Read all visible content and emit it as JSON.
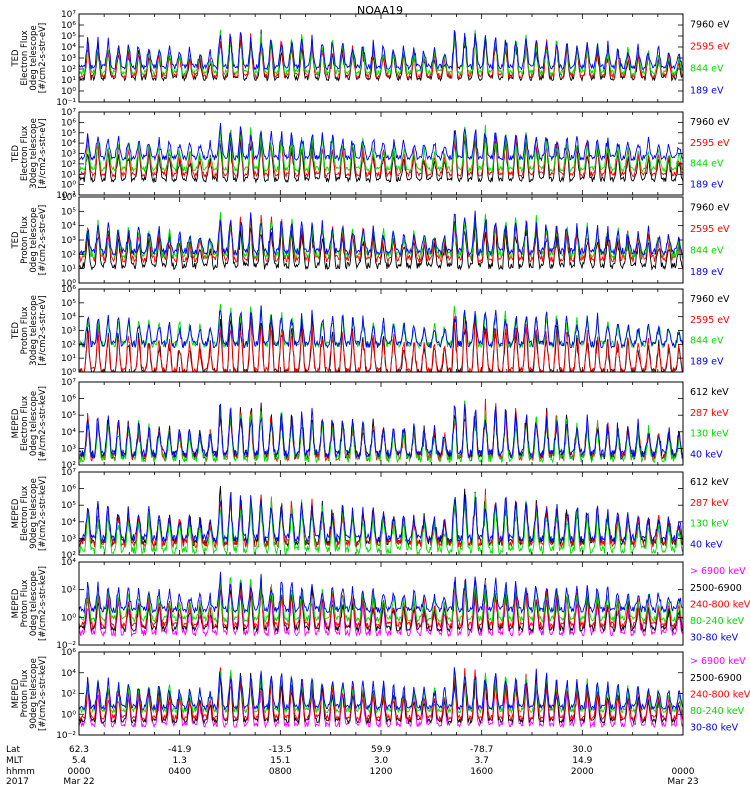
{
  "title": "NOAA19",
  "colors": {
    "black": "#000000",
    "red": "#ff0000",
    "green": "#00dd00",
    "blue": "#0000ff",
    "magenta": "#ff00ff"
  },
  "chart_data": [
    {
      "type": "line",
      "ylabel": [
        "TED",
        "Electron Flux",
        "0deg telescope",
        "[#/cm2-s-str-eV]"
      ],
      "ylog": true,
      "ylim": [
        0.1,
        10000000
      ],
      "yticks": [
        "10⁻¹",
        "10⁰",
        "10¹",
        "10²",
        "10³",
        "10⁴",
        "10⁵",
        "10⁶",
        "10⁷"
      ],
      "series": [
        {
          "name": "7960 eV",
          "color": "#000000",
          "base": 1.2
        },
        {
          "name": "2595 eV",
          "color": "#ff0000",
          "base": 1.4
        },
        {
          "name": "844 eV",
          "color": "#00dd00",
          "base": 1.7
        },
        {
          "name": "189 eV",
          "color": "#0000ff",
          "base": 2.2
        }
      ]
    },
    {
      "type": "line",
      "ylabel": [
        "TED",
        "Electron Flux",
        "30deg telescope",
        "[#/cm2-s-str-eV]"
      ],
      "ylog": true,
      "ylim": [
        0.1,
        10000000
      ],
      "yticks": [
        "10⁻¹",
        "10⁰",
        "10¹",
        "10²",
        "10³",
        "10⁴",
        "10⁵",
        "10⁶",
        "10⁷"
      ],
      "series": [
        {
          "name": "7960 eV",
          "color": "#000000",
          "base": 0.5
        },
        {
          "name": "2595 eV",
          "color": "#ff0000",
          "base": 1.0
        },
        {
          "name": "844 eV",
          "color": "#00dd00",
          "base": 1.5
        },
        {
          "name": "189 eV",
          "color": "#0000ff",
          "base": 2.6
        }
      ]
    },
    {
      "type": "line",
      "ylabel": [
        "TED",
        "Proton Flux",
        "0deg telescope",
        "[#/cm2-s-str-eV]"
      ],
      "ylog": true,
      "ylim": [
        1,
        1000000
      ],
      "yticks": [
        "10⁰",
        "10¹",
        "10²",
        "10³",
        "10⁴",
        "10⁵",
        "10⁶"
      ],
      "series": [
        {
          "name": "7960 eV",
          "color": "#000000",
          "base": 1.2
        },
        {
          "name": "2595 eV",
          "color": "#ff0000",
          "base": 1.7
        },
        {
          "name": "844 eV",
          "color": "#00dd00",
          "base": 2.0
        },
        {
          "name": "189 eV",
          "color": "#0000ff",
          "base": 2.2
        }
      ]
    },
    {
      "type": "line",
      "ylabel": [
        "TED",
        "Proton Flux",
        "30deg telescope",
        "[#/cm2-s-str-eV]"
      ],
      "ylog": true,
      "ylim": [
        1,
        1000000
      ],
      "yticks": [
        "10⁰",
        "10¹",
        "10²",
        "10³",
        "10⁴",
        "10⁵",
        "10⁶"
      ],
      "series": [
        {
          "name": "7960 eV",
          "color": "#000000",
          "base": 0.0
        },
        {
          "name": "2595 eV",
          "color": "#ff0000",
          "base": 0.1
        },
        {
          "name": "844 eV",
          "color": "#00dd00",
          "base": 2.0
        },
        {
          "name": "189 eV",
          "color": "#0000ff",
          "base": 2.0
        }
      ]
    },
    {
      "type": "line",
      "ylabel": [
        "MEPED",
        "Electron Flux",
        "0deg telescope",
        "[#/cm2-s-str-keV]"
      ],
      "ylog": true,
      "ylim": [
        100,
        10000000
      ],
      "yticks": [
        "10²",
        "10³",
        "10⁴",
        "10⁵",
        "10⁶",
        "10⁷"
      ],
      "series": [
        {
          "name": "612 keV",
          "color": "#000000",
          "base": 2.6
        },
        {
          "name": "287 keV",
          "color": "#ff0000",
          "base": 2.5
        },
        {
          "name": "130 keV",
          "color": "#00dd00",
          "base": 2.4
        },
        {
          "name": "40 keV",
          "color": "#0000ff",
          "base": 2.7
        }
      ]
    },
    {
      "type": "line",
      "ylabel": [
        "MEPED",
        "Electron Flux",
        "90deg telescope",
        "[#/cm2-s-str-keV]"
      ],
      "ylog": true,
      "ylim": [
        100,
        10000000
      ],
      "yticks": [
        "10²",
        "10³",
        "10⁴",
        "10⁵",
        "10⁶",
        "10⁷"
      ],
      "series": [
        {
          "name": "612 keV",
          "color": "#000000",
          "base": 2.8
        },
        {
          "name": "287 keV",
          "color": "#ff0000",
          "base": 2.7
        },
        {
          "name": "130 keV",
          "color": "#00dd00",
          "base": 2.3
        },
        {
          "name": "40 keV",
          "color": "#0000ff",
          "base": 3.0
        }
      ]
    },
    {
      "type": "line",
      "ylabel": [
        "MEPED",
        "Proton Flux",
        "0deg telescope",
        "[#/cm2-s-str-keV]"
      ],
      "ylog": true,
      "ylim": [
        0.01,
        100000
      ],
      "yticks": [
        "10⁻²",
        "10⁰",
        "10²",
        "10⁴"
      ],
      "series": [
        {
          "name": "> 6900 keV",
          "color": "#ff00ff",
          "base": -1.0
        },
        {
          "name": "2500-6900",
          "color": "#000000",
          "base": -0.6
        },
        {
          "name": "240-800 keV",
          "color": "#ff0000",
          "base": -0.3
        },
        {
          "name": "80-240 keV",
          "color": "#00dd00",
          "base": 0.2
        },
        {
          "name": "30-80 keV",
          "color": "#0000ff",
          "base": 1.0
        }
      ]
    },
    {
      "type": "line",
      "ylabel": [
        "MEPED",
        "Proton Flux",
        "90deg telescope",
        "[#/cm2-s-str-keV]"
      ],
      "ylog": true,
      "ylim": [
        0.01,
        1000000
      ],
      "yticks": [
        "10⁻²",
        "10⁰",
        "10²",
        "10⁴",
        "10⁶"
      ],
      "series": [
        {
          "name": "> 6900 keV",
          "color": "#ff00ff",
          "base": -1.0
        },
        {
          "name": "2500-6900",
          "color": "#000000",
          "base": -0.6
        },
        {
          "name": "240-800 keV",
          "color": "#ff0000",
          "base": -0.3
        },
        {
          "name": "80-240 keV",
          "color": "#00dd00",
          "base": 0.4
        },
        {
          "name": "30-80 keV",
          "color": "#0000ff",
          "base": 0.7
        }
      ]
    }
  ],
  "xaxis": {
    "row_labels": [
      "Lat",
      "MLT",
      "hhmm",
      "2017"
    ],
    "ticks": [
      {
        "hour": 0,
        "lat": "62.3",
        "mlt": "5.4",
        "hhmm": "0000",
        "date": "Mar 22"
      },
      {
        "hour": 4,
        "lat": "-41.9",
        "mlt": "1.3",
        "hhmm": "0400",
        "date": ""
      },
      {
        "hour": 8,
        "lat": "-13.5",
        "mlt": "15.1",
        "hhmm": "0800",
        "date": ""
      },
      {
        "hour": 12,
        "lat": "59.9",
        "mlt": "3.0",
        "hhmm": "1200",
        "date": ""
      },
      {
        "hour": 16,
        "lat": "-78.7",
        "mlt": "3.7",
        "hhmm": "1600",
        "date": ""
      },
      {
        "hour": 20,
        "lat": "30.0",
        "mlt": "14.9",
        "hhmm": "2000",
        "date": ""
      },
      {
        "hour": 24,
        "lat": "",
        "mlt": "",
        "hhmm": "0000",
        "date": "Mar 23"
      }
    ]
  }
}
